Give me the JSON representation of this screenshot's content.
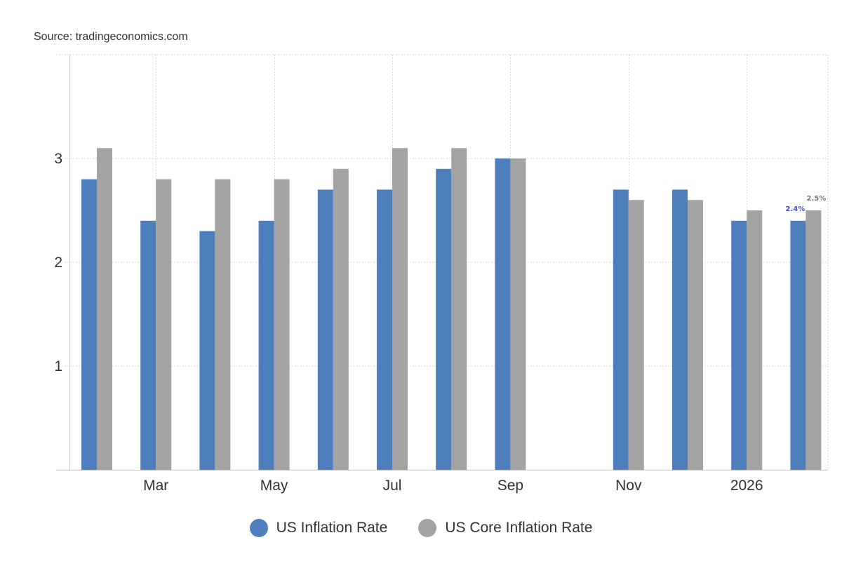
{
  "source_text": "Source: tradingeconomics.com",
  "chart_data": {
    "type": "bar",
    "categories": [
      "Feb 2025",
      "Mar 2025",
      "Apr 2025",
      "May 2025",
      "Jun 2025",
      "Jul 2025",
      "Aug 2025",
      "Sep 2025",
      "Oct 2025",
      "Nov 2025",
      "Dec 2025",
      "Jan 2026",
      "Feb 2026"
    ],
    "x_tick_labels": [
      {
        "label": "Mar",
        "category": "Mar 2025"
      },
      {
        "label": "May",
        "category": "May 2025"
      },
      {
        "label": "Jul",
        "category": "Jul 2025"
      },
      {
        "label": "Sep",
        "category": "Sep 2025"
      },
      {
        "label": "Nov",
        "category": "Nov 2025"
      },
      {
        "label": "2026",
        "category": "Jan 2026"
      }
    ],
    "series": [
      {
        "name": "US Inflation Rate",
        "color": "#4e7fbd",
        "values": [
          2.8,
          2.4,
          2.3,
          2.4,
          2.7,
          2.7,
          2.9,
          3.0,
          null,
          2.7,
          2.7,
          2.4,
          2.4
        ]
      },
      {
        "name": "US Core Inflation Rate",
        "color": "#a3a3a3",
        "values": [
          3.1,
          2.8,
          2.8,
          2.8,
          2.9,
          3.1,
          3.1,
          3.0,
          null,
          2.6,
          2.6,
          2.5,
          2.5
        ]
      }
    ],
    "data_labels": [
      {
        "text": "2.4%",
        "series": "US Inflation Rate",
        "category": "Feb 2026",
        "color": "#3b4fc4"
      },
      {
        "text": "2.5%",
        "series": "US Core Inflation Rate",
        "category": "Feb 2026",
        "color": "#777777"
      }
    ],
    "y_ticks": [
      {
        "value": 1,
        "label": "1"
      },
      {
        "value": 2,
        "label": "2"
      },
      {
        "value": 3,
        "label": "3"
      }
    ],
    "ylim": [
      0,
      4
    ],
    "grid": true,
    "legend_position": "bottom",
    "title": "",
    "xlabel": "",
    "ylabel": ""
  },
  "legend": [
    {
      "label": "US Inflation Rate",
      "color": "#4e7fbd"
    },
    {
      "label": "US Core Inflation Rate",
      "color": "#a3a3a3"
    }
  ]
}
